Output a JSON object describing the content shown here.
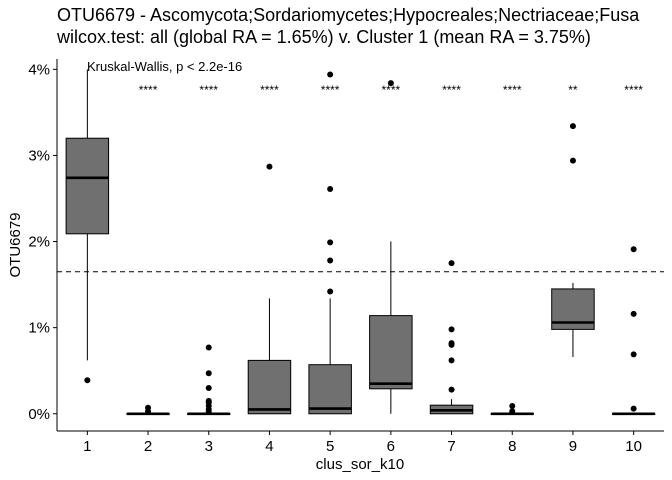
{
  "chart_data": {
    "type": "box",
    "title_lines": [
      "OTU6679 - Ascomycota;Sordariomycetes;Hypocreales;Nectriaceae;Fusa",
      "wilcox.test: all (global RA = 1.65%) v. Cluster 1 (mean RA = 3.75%)"
    ],
    "xlabel": "clus_sor_k10",
    "ylabel": "OTU6679",
    "categories": [
      "1",
      "2",
      "3",
      "4",
      "5",
      "6",
      "7",
      "8",
      "9",
      "10"
    ],
    "y_ticks": [
      {
        "value": 0,
        "label": "0%"
      },
      {
        "value": 0.01,
        "label": "1%"
      },
      {
        "value": 0.02,
        "label": "2%"
      },
      {
        "value": 0.03,
        "label": "3%"
      },
      {
        "value": 0.04,
        "label": "4%"
      }
    ],
    "ylim": [
      -0.002,
      0.0412
    ],
    "reference_line": {
      "value": 0.0165,
      "style": "dashed"
    },
    "test_annotation": "Kruskal-Wallis, p < 2.2e-16",
    "significance_y": 0.0376,
    "significance": [
      "",
      "****",
      "****",
      "****",
      "****",
      "****",
      "****",
      "****",
      "**",
      "****"
    ],
    "box_fill": "#707070",
    "boxes": [
      {
        "category": "1",
        "whisker_low": 0.0062,
        "q1": 0.0209,
        "median": 0.0274,
        "q3": 0.032,
        "whisker_high": 0.04,
        "outliers": [
          0.0039
        ]
      },
      {
        "category": "2",
        "whisker_low": 0.0,
        "q1": 0.0,
        "median": 0.0,
        "q3": 0.0,
        "whisker_high": 0.0,
        "outliers": [
          0.0007,
          0.0003
        ]
      },
      {
        "category": "3",
        "whisker_low": 0.0,
        "q1": 0.0,
        "median": 0.0,
        "q3": 0.0,
        "whisker_high": 0.0,
        "outliers": [
          0.0077,
          0.0047,
          0.003,
          0.0015,
          0.0013,
          0.0009,
          0.0005,
          0.0002
        ]
      },
      {
        "category": "4",
        "whisker_low": 0.0,
        "q1": 0.0,
        "median": 0.0005,
        "q3": 0.0062,
        "whisker_high": 0.0134,
        "outliers": [
          0.0287
        ]
      },
      {
        "category": "5",
        "whisker_low": 0.0,
        "q1": 0.0,
        "median": 0.0006,
        "q3": 0.0057,
        "whisker_high": 0.0134,
        "outliers": [
          0.0394,
          0.0261,
          0.0199,
          0.0178,
          0.0142
        ]
      },
      {
        "category": "6",
        "whisker_low": 0.0,
        "q1": 0.0029,
        "median": 0.0035,
        "q3": 0.0114,
        "whisker_high": 0.02,
        "outliers": [
          0.0384
        ]
      },
      {
        "category": "7",
        "whisker_low": 0.0,
        "q1": 0.0,
        "median": 0.0004,
        "q3": 0.001,
        "whisker_high": 0.0017,
        "outliers": [
          0.0175,
          0.0098,
          0.0082,
          0.008,
          0.0062,
          0.0028
        ]
      },
      {
        "category": "8",
        "whisker_low": 0.0,
        "q1": 0.0,
        "median": 0.0,
        "q3": 0.0,
        "whisker_high": 0.0,
        "outliers": [
          0.0009,
          0.0003
        ]
      },
      {
        "category": "9",
        "whisker_low": 0.0066,
        "q1": 0.0098,
        "median": 0.0106,
        "q3": 0.0145,
        "whisker_high": 0.0152,
        "outliers": [
          0.0334,
          0.0294
        ]
      },
      {
        "category": "10",
        "whisker_low": 0.0,
        "q1": 0.0,
        "median": 0.0,
        "q3": 0.0,
        "whisker_high": 0.0,
        "outliers": [
          0.0191,
          0.0116,
          0.0069,
          0.0006
        ]
      }
    ]
  }
}
